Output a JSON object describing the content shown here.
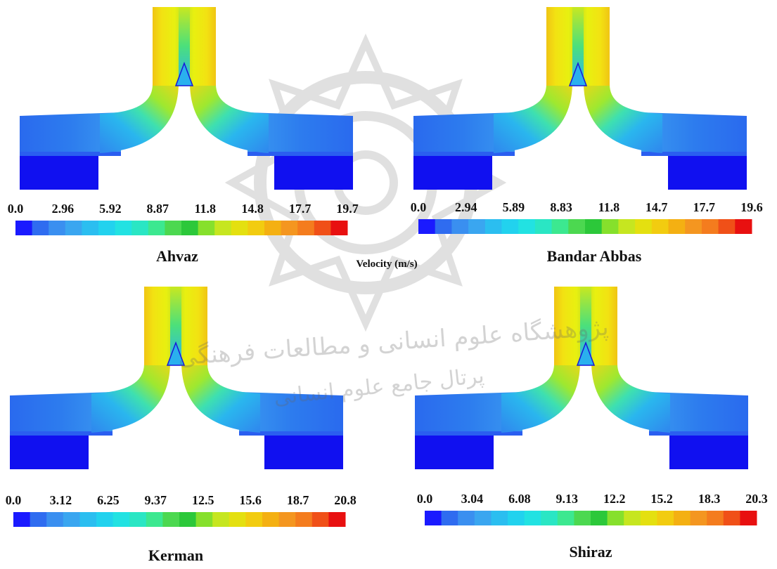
{
  "figure": {
    "velocity_label": "Velocity (m/s)",
    "panels": [
      {
        "title": "Ahvaz",
        "ticks": [
          "0.0",
          "2.96",
          "5.92",
          "8.87",
          "11.8",
          "14.8",
          "17.7",
          "19.7"
        ]
      },
      {
        "title": "Bandar Abbas",
        "ticks": [
          "0.0",
          "2.94",
          "5.89",
          "8.83",
          "11.8",
          "14.7",
          "17.7",
          "19.6"
        ]
      },
      {
        "title": "Kerman",
        "ticks": [
          "0.0",
          "3.12",
          "6.25",
          "9.37",
          "12.5",
          "15.6",
          "18.7",
          "20.8"
        ]
      },
      {
        "title": "Shiraz",
        "ticks": [
          "0.0",
          "3.04",
          "6.08",
          "9.13",
          "12.2",
          "15.2",
          "18.3",
          "20.3"
        ]
      }
    ],
    "colorbar_colors": [
      "#1a1aff",
      "#2f6cf0",
      "#3a8ff0",
      "#3aa6f0",
      "#2bbef0",
      "#22d2ee",
      "#22e2e2",
      "#2ae6c4",
      "#3ce890",
      "#4cd850",
      "#2cc83a",
      "#86e02c",
      "#c6e620",
      "#e4e010",
      "#f2cc10",
      "#f4b012",
      "#f49620",
      "#f47c1e",
      "#f05018",
      "#e81010"
    ],
    "watermark_text": [
      "پژوهشگاه علوم انسانی و مطالعات فرهنگی",
      "پرتال جامع علوم انسانی"
    ]
  }
}
